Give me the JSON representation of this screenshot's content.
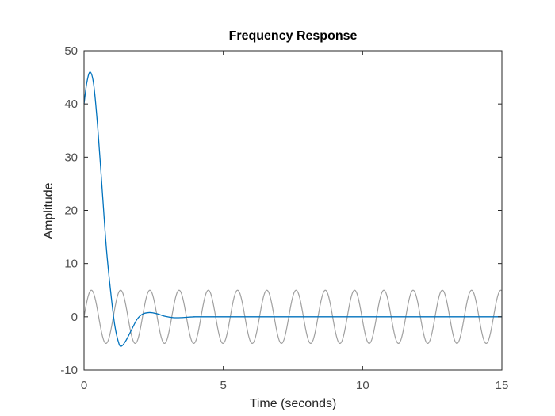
{
  "chart_data": {
    "type": "line",
    "title": "Frequency Response",
    "xlabel": "Time (seconds)",
    "ylabel": "Amplitude",
    "xlim": [
      0,
      15
    ],
    "ylim": [
      -10,
      50
    ],
    "xticks": [
      0,
      5,
      10,
      15
    ],
    "yticks": [
      -10,
      0,
      10,
      20,
      30,
      40,
      50
    ],
    "grid": false,
    "legend": "none",
    "series": [
      {
        "kind": "input-sinusoid",
        "color": "#a0a0a0",
        "amplitude": 5,
        "period": 1.05,
        "phase_start_value": 0,
        "description_points": [
          {
            "x": 0.0,
            "y": 0
          },
          {
            "x": 0.26,
            "y": 5
          },
          {
            "x": 0.79,
            "y": -5
          },
          {
            "x": 1.31,
            "y": 5
          },
          {
            "x": 1.84,
            "y": -5
          }
        ]
      },
      {
        "kind": "response",
        "color": "#0072bd",
        "points": [
          {
            "x": 0.0,
            "y": 40
          },
          {
            "x": 0.1,
            "y": 44
          },
          {
            "x": 0.22,
            "y": 46
          },
          {
            "x": 0.35,
            "y": 43.5
          },
          {
            "x": 0.5,
            "y": 35
          },
          {
            "x": 0.65,
            "y": 24
          },
          {
            "x": 0.8,
            "y": 13
          },
          {
            "x": 0.95,
            "y": 5
          },
          {
            "x": 1.1,
            "y": -1.5
          },
          {
            "x": 1.25,
            "y": -5
          },
          {
            "x": 1.35,
            "y": -5.5
          },
          {
            "x": 1.5,
            "y": -4.5
          },
          {
            "x": 1.7,
            "y": -2.5
          },
          {
            "x": 1.9,
            "y": -0.5
          },
          {
            "x": 2.1,
            "y": 0.5
          },
          {
            "x": 2.35,
            "y": 0.8
          },
          {
            "x": 2.6,
            "y": 0.6
          },
          {
            "x": 2.9,
            "y": 0.1
          },
          {
            "x": 3.2,
            "y": -0.15
          },
          {
            "x": 3.5,
            "y": -0.15
          },
          {
            "x": 4.0,
            "y": 0
          },
          {
            "x": 5.0,
            "y": 0
          },
          {
            "x": 15.0,
            "y": 0
          }
        ]
      }
    ]
  }
}
